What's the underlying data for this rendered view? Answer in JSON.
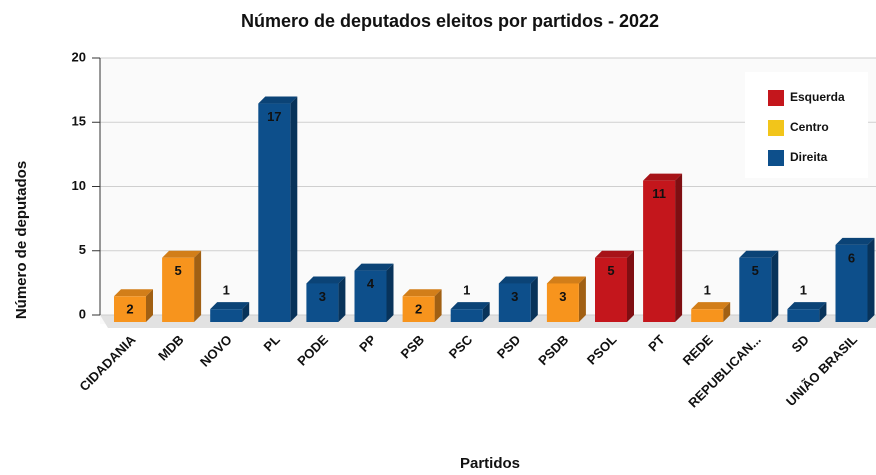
{
  "chart_data": {
    "type": "bar3d",
    "title": "Número de deputados eleitos por partidos - 2022",
    "x_label": "Partidos",
    "y_label": "Número de deputados",
    "categories": [
      "CIDADANIA",
      "MDB",
      "NOVO",
      "PL",
      "PODE",
      "PP",
      "PSB",
      "PSC",
      "PSD",
      "PSDB",
      "PSOL",
      "PT",
      "REDE",
      "REPUBLICAN...",
      "SD",
      "UNIÃO BRASIL"
    ],
    "values": [
      2,
      5,
      1,
      17,
      3,
      4,
      2,
      1,
      3,
      3,
      5,
      11,
      1,
      5,
      1,
      6
    ],
    "colors": [
      "#f7941d",
      "#f7941d",
      "#0d4f8b",
      "#0d4f8b",
      "#0d4f8b",
      "#0d4f8b",
      "#f7941d",
      "#0d4f8b",
      "#0d4f8b",
      "#f7941d",
      "#c4161c",
      "#c4161c",
      "#f7941d",
      "#0d4f8b",
      "#0d4f8b",
      "#0d4f8b"
    ],
    "legend": [
      {
        "name": "Esquerda",
        "color": "#c4161c"
      },
      {
        "name": "Centro",
        "color": "#f2c51a"
      },
      {
        "name": "Direita",
        "color": "#0d4f8b"
      }
    ],
    "legend_position": "upper right",
    "ylim": [
      0,
      20
    ],
    "yticks": [
      0,
      5,
      10,
      15,
      20
    ],
    "grid": true
  }
}
